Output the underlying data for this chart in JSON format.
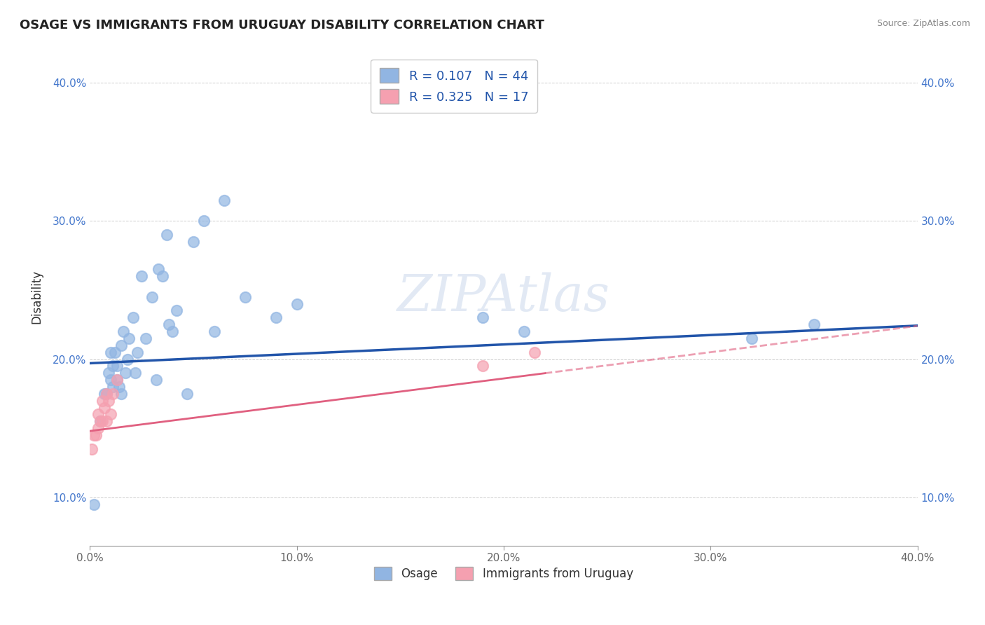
{
  "title": "OSAGE VS IMMIGRANTS FROM URUGUAY DISABILITY CORRELATION CHART",
  "source": "Source: ZipAtlas.com",
  "ylabel": "Disability",
  "xlim": [
    0.0,
    0.4
  ],
  "ylim": [
    0.065,
    0.425
  ],
  "xtick_labels": [
    "0.0%",
    "",
    "",
    "",
    "",
    "10.0%",
    "",
    "",
    "",
    "",
    "20.0%",
    "",
    "",
    "",
    "",
    "30.0%",
    "",
    "",
    "",
    "",
    "40.0%"
  ],
  "xtick_vals": [
    0.0,
    0.02,
    0.04,
    0.06,
    0.08,
    0.1,
    0.12,
    0.14,
    0.16,
    0.18,
    0.2,
    0.22,
    0.24,
    0.26,
    0.28,
    0.3,
    0.32,
    0.34,
    0.36,
    0.38,
    0.4
  ],
  "xtick_major_labels": [
    "0.0%",
    "10.0%",
    "20.0%",
    "30.0%",
    "40.0%"
  ],
  "xtick_major_vals": [
    0.0,
    0.1,
    0.2,
    0.3,
    0.4
  ],
  "ytick_labels": [
    "10.0%",
    "20.0%",
    "30.0%",
    "40.0%"
  ],
  "ytick_vals": [
    0.1,
    0.2,
    0.3,
    0.4
  ],
  "osage_color": "#91b5e2",
  "uruguay_color": "#f5a0b0",
  "osage_line_color": "#2255aa",
  "uruguay_line_color": "#e06080",
  "legend_text_color": "#2255aa",
  "R_osage": 0.107,
  "N_osage": 44,
  "R_uruguay": 0.325,
  "N_uruguay": 17,
  "watermark": "ZIPAtlas",
  "osage_line_intercept": 0.197,
  "osage_line_slope": 0.068,
  "uruguay_line_intercept": 0.148,
  "uruguay_line_slope": 0.19,
  "osage_x": [
    0.002,
    0.005,
    0.007,
    0.008,
    0.009,
    0.01,
    0.01,
    0.011,
    0.011,
    0.012,
    0.013,
    0.013,
    0.014,
    0.015,
    0.015,
    0.016,
    0.017,
    0.018,
    0.019,
    0.021,
    0.022,
    0.023,
    0.025,
    0.027,
    0.03,
    0.032,
    0.033,
    0.035,
    0.037,
    0.038,
    0.04,
    0.042,
    0.047,
    0.05,
    0.055,
    0.06,
    0.065,
    0.075,
    0.09,
    0.1,
    0.19,
    0.21,
    0.32,
    0.35
  ],
  "osage_y": [
    0.095,
    0.155,
    0.175,
    0.175,
    0.19,
    0.185,
    0.205,
    0.18,
    0.195,
    0.205,
    0.185,
    0.195,
    0.18,
    0.175,
    0.21,
    0.22,
    0.19,
    0.2,
    0.215,
    0.23,
    0.19,
    0.205,
    0.26,
    0.215,
    0.245,
    0.185,
    0.265,
    0.26,
    0.29,
    0.225,
    0.22,
    0.235,
    0.175,
    0.285,
    0.3,
    0.22,
    0.315,
    0.245,
    0.23,
    0.24,
    0.23,
    0.22,
    0.215,
    0.225
  ],
  "uruguay_x": [
    0.001,
    0.002,
    0.003,
    0.004,
    0.004,
    0.005,
    0.006,
    0.006,
    0.007,
    0.008,
    0.008,
    0.009,
    0.01,
    0.011,
    0.013,
    0.19,
    0.215
  ],
  "uruguay_y": [
    0.135,
    0.145,
    0.145,
    0.15,
    0.16,
    0.155,
    0.155,
    0.17,
    0.165,
    0.155,
    0.175,
    0.17,
    0.16,
    0.175,
    0.185,
    0.195,
    0.205
  ]
}
